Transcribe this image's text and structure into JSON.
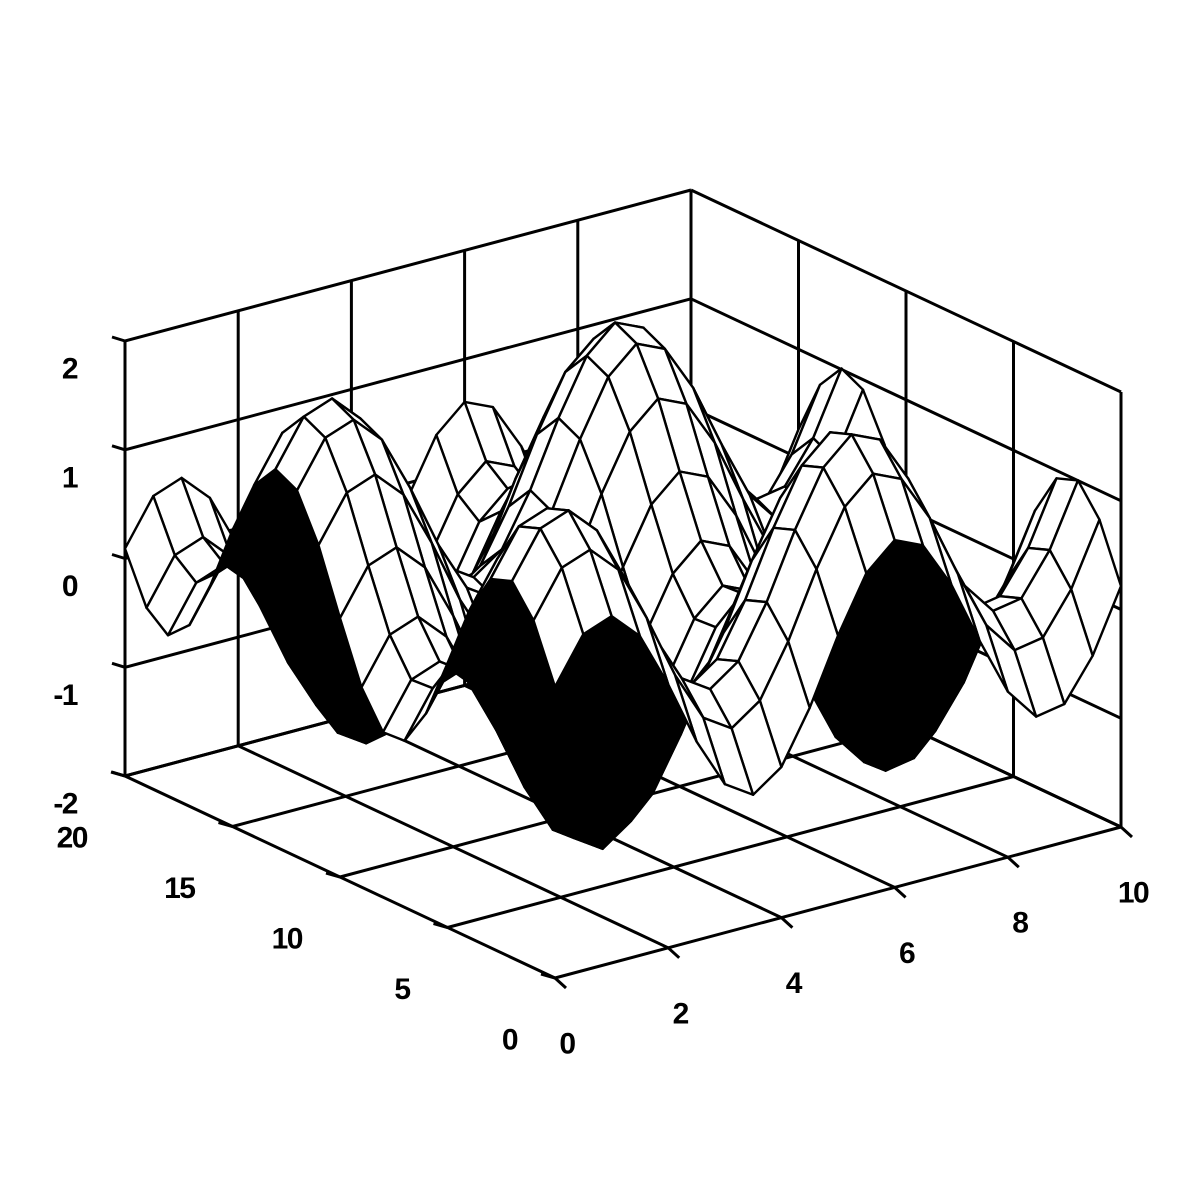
{
  "chart_data": {
    "type": "surface",
    "title": "",
    "xlabel": "",
    "ylabel": "",
    "zlabel": "",
    "x_range": [
      0,
      10
    ],
    "y_range": [
      0,
      20
    ],
    "z_range": [
      -2,
      2
    ],
    "x_ticks": [
      "0",
      "2",
      "4",
      "6",
      "8",
      "10"
    ],
    "y_ticks": [
      "0",
      "5",
      "10",
      "15",
      "20"
    ],
    "z_ticks": [
      "-2",
      "-1",
      "0",
      "1",
      "2"
    ],
    "grid": true,
    "x_samples": [
      0,
      0.5,
      1,
      1.5,
      2,
      2.5,
      3,
      3.5,
      4,
      4.5,
      5,
      5.5,
      6,
      6.5,
      7,
      7.5,
      8,
      8.5,
      9,
      9.5,
      10
    ],
    "y_samples": [
      0,
      1,
      2,
      3,
      4,
      5,
      6,
      7,
      8,
      9,
      10,
      11,
      12,
      13,
      14,
      15,
      16,
      17,
      18,
      19,
      20
    ],
    "z_function": "sin(2*pi*x/5.2 + 0.5) + sin(2*pi*y/10.5 + 0.2)",
    "colors": {
      "surface_top": "#ffffff",
      "surface_under": "#000000",
      "mesh": "#000000",
      "grid": "#000000",
      "background": "#ffffff"
    }
  }
}
